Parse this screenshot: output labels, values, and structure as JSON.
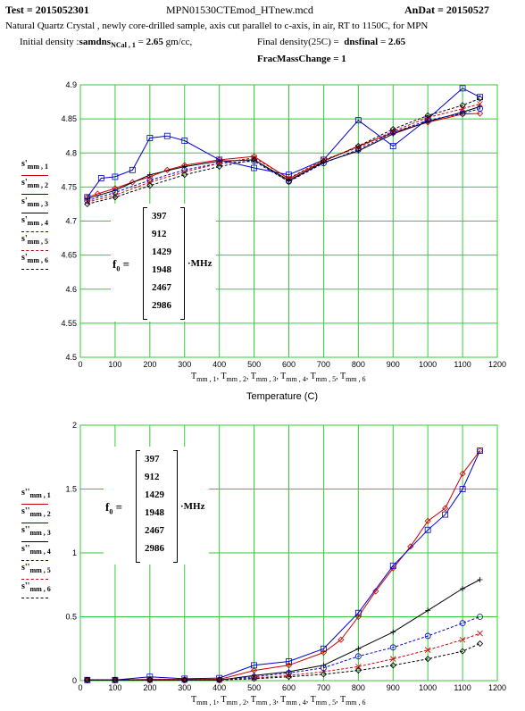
{
  "header": {
    "test_label": "Test",
    "test_value": "2015052301",
    "filename": "MPN01530CTEmod_HTnew.mcd",
    "andat_label": "AnDat",
    "andat_value": "20150527",
    "description": "Natural Quartz Crystal , newly core-drilled sample, axis cut parallel to c-axis, in air, RT to 1150C, for MPN",
    "initial_density_label": "Initial density",
    "initial_density_var": "samdns",
    "initial_density_sub": "NCal , 1",
    "initial_density_value": "2.65",
    "initial_density_unit": "gm/cc,",
    "final_density_label": "Final density(25C) =",
    "final_density_var": "dnsfinal",
    "final_density_value": "2.65",
    "frac_mass_label": "FracMassChange",
    "frac_mass_value": "1"
  },
  "matrix": {
    "label": "f",
    "label_sub": "0",
    "values": [
      "397",
      "912",
      "1429",
      "1948",
      "2467",
      "2986"
    ],
    "unit": "·MHz"
  },
  "chart_data": [
    {
      "type": "line",
      "xlabel_parts": [
        "T",
        "mm , 1",
        "T",
        "mm , 2",
        "T",
        "mm , 3",
        "T",
        "mm , 4",
        "T",
        "mm , 5",
        "T",
        "mm , 6"
      ],
      "xlabel2": "Temperature (C)",
      "xlim": [
        0,
        1200
      ],
      "ylim": [
        4.5,
        4.9
      ],
      "xticks": [
        "0",
        "100",
        "200",
        "300",
        "400",
        "500",
        "600",
        "700",
        "800",
        "900",
        "1000",
        "1100",
        "1200"
      ],
      "yticks": [
        "4.5",
        "4.55",
        "4.6",
        "4.65",
        "4.7",
        "4.75",
        "4.8",
        "4.85",
        "4.9"
      ],
      "grid": true,
      "legend": [
        {
          "label": "s'",
          "sub": "mm , 1",
          "color": "#cc0000",
          "marker": "diamond"
        },
        {
          "label": "s'",
          "sub": "mm , 2",
          "color": "#0000cc",
          "marker": "square"
        },
        {
          "label": "s'",
          "sub": "mm , 3",
          "color": "#000000",
          "marker": "plus"
        },
        {
          "label": "s'",
          "sub": "mm , 4",
          "color": "#0000cc",
          "marker": "circle"
        },
        {
          "label": "s'",
          "sub": "mm , 5",
          "color": "#cc0000",
          "marker": "x"
        },
        {
          "label": "s'",
          "sub": "mm , 6",
          "color": "#000000",
          "marker": "diamond"
        }
      ],
      "series": [
        {
          "x": [
            20,
            50,
            100,
            150,
            200,
            250,
            300,
            400,
            500,
            600,
            700,
            800,
            900,
            1000,
            1100,
            1150
          ],
          "y": [
            4.735,
            4.74,
            4.748,
            4.757,
            4.765,
            4.775,
            4.782,
            4.79,
            4.795,
            4.762,
            4.788,
            4.81,
            4.83,
            4.845,
            4.857,
            4.858
          ]
        },
        {
          "x": [
            20,
            60,
            100,
            150,
            200,
            250,
            300,
            400,
            500,
            600,
            700,
            800,
            900,
            1000,
            1100,
            1150
          ],
          "y": [
            4.735,
            4.763,
            4.765,
            4.775,
            4.822,
            4.825,
            4.818,
            4.79,
            4.778,
            4.768,
            4.79,
            4.848,
            4.81,
            4.85,
            4.895,
            4.882
          ]
        },
        {
          "x": [
            20,
            100,
            200,
            300,
            400,
            500,
            600,
            700,
            800,
            900,
            1000,
            1100,
            1150
          ],
          "y": [
            4.733,
            4.745,
            4.768,
            4.78,
            4.788,
            4.79,
            4.76,
            4.786,
            4.803,
            4.828,
            4.846,
            4.86,
            4.868
          ]
        },
        {
          "x": [
            20,
            100,
            200,
            300,
            400,
            500,
            600,
            700,
            800,
            900,
            1000,
            1100,
            1150
          ],
          "y": [
            4.73,
            4.742,
            4.76,
            4.775,
            4.785,
            4.788,
            4.758,
            4.785,
            4.805,
            4.83,
            4.848,
            4.858,
            4.865
          ]
        },
        {
          "x": [
            20,
            100,
            200,
            300,
            400,
            500,
            600,
            700,
            800,
            900,
            1000,
            1100,
            1150
          ],
          "y": [
            4.728,
            4.738,
            4.757,
            4.772,
            4.785,
            4.793,
            4.763,
            4.79,
            4.808,
            4.832,
            4.852,
            4.865,
            4.872
          ]
        },
        {
          "x": [
            20,
            100,
            200,
            300,
            400,
            500,
            600,
            700,
            800,
            900,
            1000,
            1100,
            1150
          ],
          "y": [
            4.725,
            4.735,
            4.752,
            4.768,
            4.78,
            4.79,
            4.758,
            4.788,
            4.81,
            4.835,
            4.855,
            4.87,
            4.88
          ]
        }
      ]
    },
    {
      "type": "line",
      "xlabel_parts": [
        "T",
        "mm , 1",
        "T",
        "mm , 2",
        "T",
        "mm , 3",
        "T",
        "mm , 4",
        "T",
        "mm , 5",
        "T",
        "mm , 6"
      ],
      "xlim": [
        0,
        1200
      ],
      "ylim": [
        0,
        2
      ],
      "xticks": [
        "0",
        "100",
        "200",
        "300",
        "400",
        "500",
        "600",
        "700",
        "800",
        "900",
        "1000",
        "1100",
        "1200"
      ],
      "yticks": [
        "0",
        "0.5",
        "1",
        "1.5",
        "2"
      ],
      "grid": true,
      "legend": [
        {
          "label": "s''",
          "sub": "mm , 1",
          "color": "#cc0000",
          "marker": "diamond"
        },
        {
          "label": "s''",
          "sub": "mm , 2",
          "color": "#0000cc",
          "marker": "square"
        },
        {
          "label": "s''",
          "sub": "mm , 3",
          "color": "#000000",
          "marker": "plus"
        },
        {
          "label": "s''",
          "sub": "mm , 4",
          "color": "#0000cc",
          "marker": "circle"
        },
        {
          "label": "s''",
          "sub": "mm , 5",
          "color": "#cc0000",
          "marker": "x"
        },
        {
          "label": "s''",
          "sub": "mm , 6",
          "color": "#000000",
          "marker": "diamond"
        }
      ],
      "series": [
        {
          "x": [
            20,
            100,
            200,
            300,
            400,
            500,
            600,
            700,
            750,
            800,
            850,
            900,
            950,
            1000,
            1050,
            1100,
            1150
          ],
          "y": [
            0.005,
            0.005,
            0.01,
            0.01,
            0.01,
            0.08,
            0.12,
            0.22,
            0.32,
            0.5,
            0.7,
            0.88,
            1.05,
            1.25,
            1.35,
            1.62,
            1.8
          ]
        },
        {
          "x": [
            20,
            100,
            200,
            300,
            400,
            500,
            600,
            700,
            800,
            900,
            1000,
            1050,
            1100,
            1150
          ],
          "y": [
            0.005,
            0.005,
            0.03,
            0.015,
            0.02,
            0.12,
            0.15,
            0.25,
            0.53,
            0.9,
            1.18,
            1.3,
            1.5,
            1.8
          ]
        },
        {
          "x": [
            20,
            100,
            200,
            300,
            400,
            500,
            600,
            700,
            800,
            900,
            1000,
            1100,
            1150
          ],
          "y": [
            0.005,
            0.005,
            0.005,
            0.005,
            0.005,
            0.04,
            0.07,
            0.12,
            0.25,
            0.38,
            0.55,
            0.72,
            0.79
          ]
        },
        {
          "x": [
            20,
            100,
            200,
            300,
            400,
            500,
            600,
            700,
            800,
            900,
            1000,
            1100,
            1150
          ],
          "y": [
            0.005,
            0.005,
            0.005,
            0.005,
            0.005,
            0.03,
            0.06,
            0.1,
            0.19,
            0.26,
            0.35,
            0.45,
            0.5
          ]
        },
        {
          "x": [
            20,
            100,
            200,
            300,
            400,
            500,
            600,
            700,
            800,
            900,
            1000,
            1100,
            1150
          ],
          "y": [
            0.005,
            0.005,
            0.005,
            0.005,
            0.005,
            0.02,
            0.04,
            0.07,
            0.11,
            0.17,
            0.24,
            0.32,
            0.37
          ]
        },
        {
          "x": [
            20,
            100,
            200,
            300,
            400,
            500,
            600,
            700,
            800,
            900,
            1000,
            1100,
            1150
          ],
          "y": [
            0.005,
            0.005,
            0.005,
            0.005,
            0.005,
            0.015,
            0.03,
            0.05,
            0.08,
            0.12,
            0.17,
            0.23,
            0.29
          ]
        }
      ]
    }
  ]
}
